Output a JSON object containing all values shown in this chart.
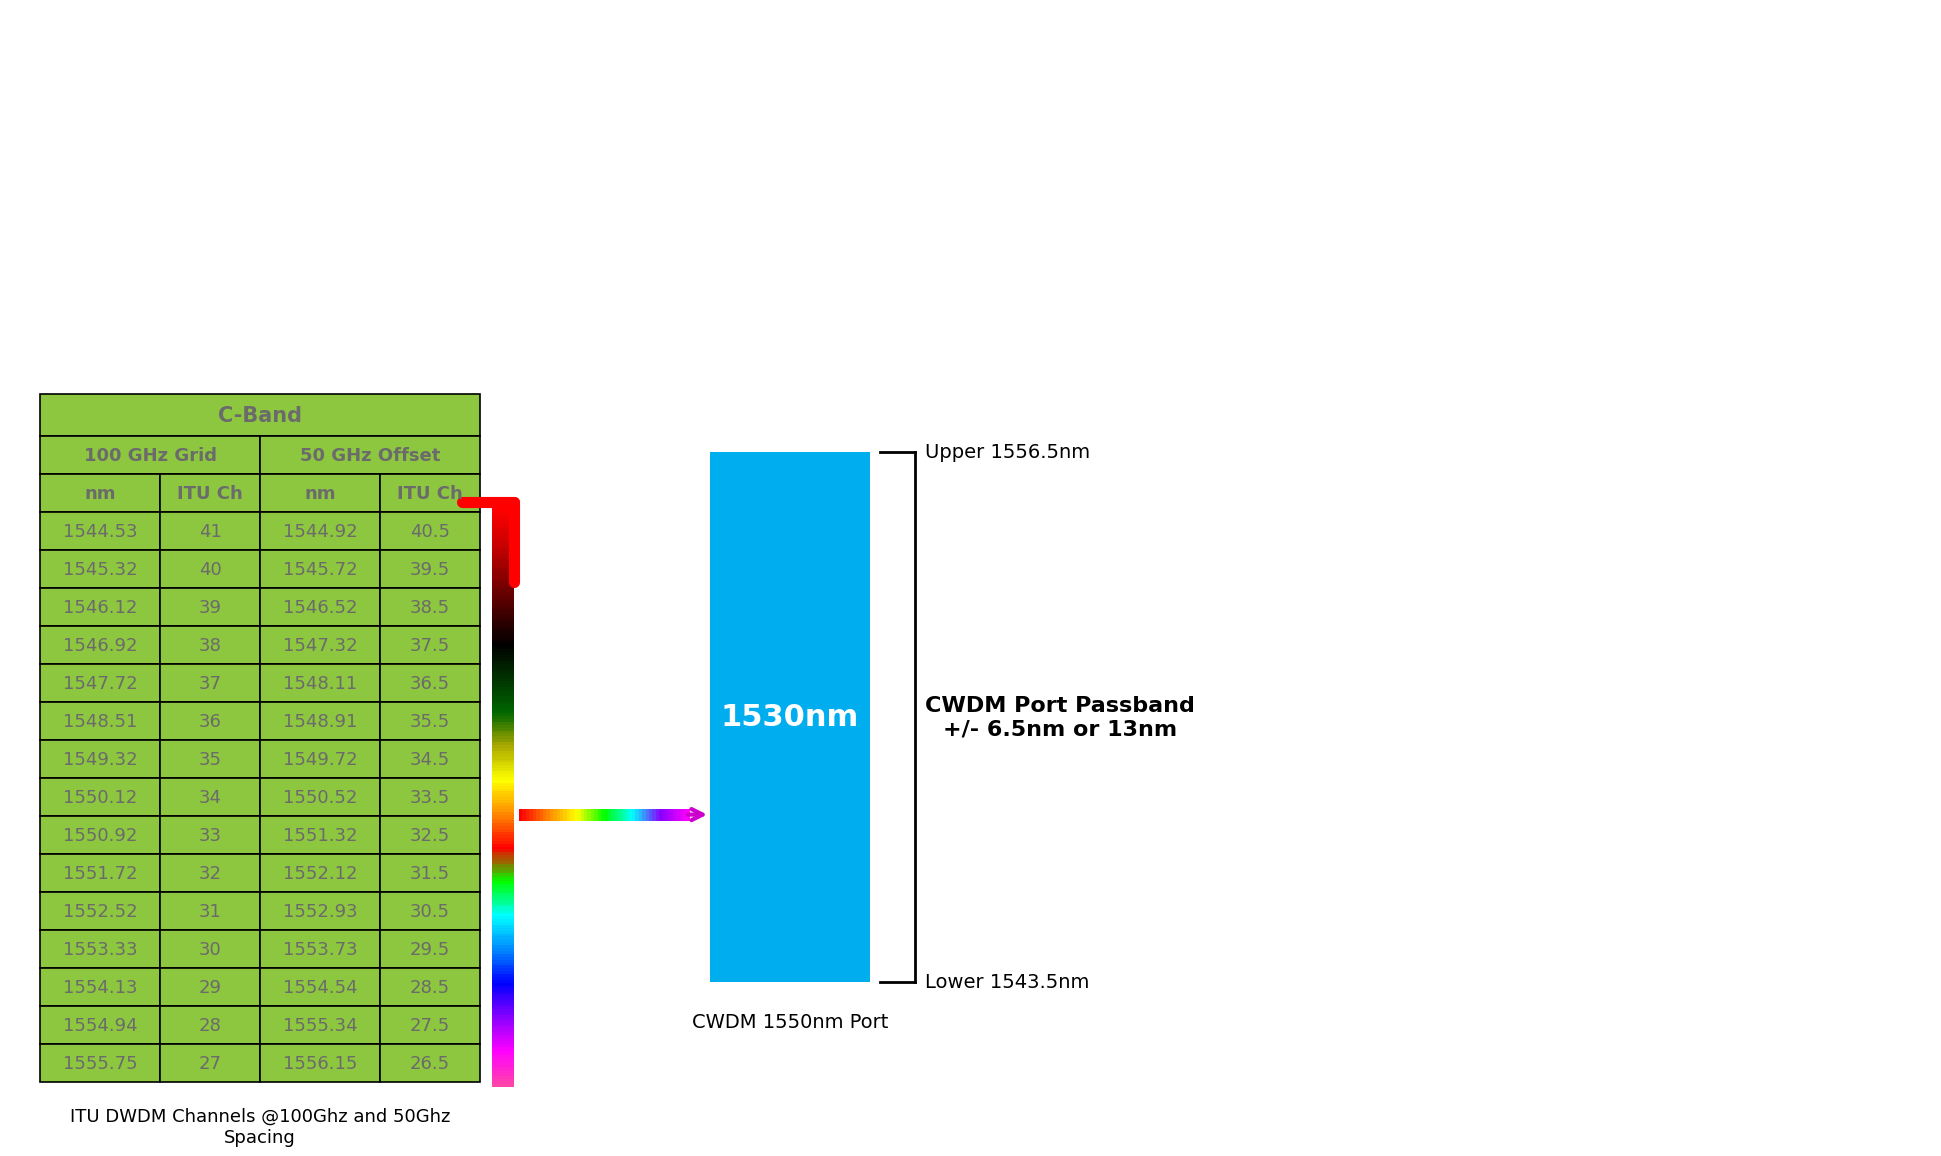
{
  "table_header_bg": "#7DC040",
  "table_cell_bg": "#8DC63F",
  "table_border_color": "#000000",
  "table_text_color": "#6B6B6B",
  "title_row": "C-Band",
  "subheader_100": "100 GHz Grid",
  "subheader_50": "50 GHz Offset",
  "col_headers": [
    "nm",
    "ITU Ch",
    "nm",
    "ITU Ch"
  ],
  "rows_100ghz_nm": [
    "1544.53",
    "1545.32",
    "1546.12",
    "1546.92",
    "1547.72",
    "1548.51",
    "1549.32",
    "1550.12",
    "1550.92",
    "1551.72",
    "1552.52",
    "1553.33",
    "1554.13",
    "1554.94",
    "1555.75"
  ],
  "rows_100ghz_itu": [
    "41",
    "40",
    "39",
    "38",
    "37",
    "36",
    "35",
    "34",
    "33",
    "32",
    "31",
    "30",
    "29",
    "28",
    "27"
  ],
  "rows_50ghz_nm": [
    "1544.92",
    "1545.72",
    "1546.52",
    "1547.32",
    "1548.11",
    "1548.91",
    "1549.72",
    "1550.52",
    "1551.32",
    "1552.12",
    "1552.93",
    "1553.73",
    "1554.54",
    "1555.34",
    "1556.15"
  ],
  "rows_50ghz_itu": [
    "40.5",
    "39.5",
    "38.5",
    "37.5",
    "36.5",
    "35.5",
    "34.5",
    "33.5",
    "32.5",
    "31.5",
    "30.5",
    "29.5",
    "28.5",
    "27.5",
    "26.5"
  ],
  "caption": "ITU DWDM Channels @100Ghz and 50Ghz\nSpacing",
  "cwdm_box_color": "#00AEEF",
  "cwdm_box_label": "1530nm",
  "cwdm_port_label": "CWDM 1550nm Port",
  "upper_label": "Upper 1556.5nm",
  "lower_label": "Lower 1543.5nm",
  "passband_label": "CWDM Port Passband\n+/- 6.5nm or 13nm",
  "background_color": "#FFFFFF"
}
